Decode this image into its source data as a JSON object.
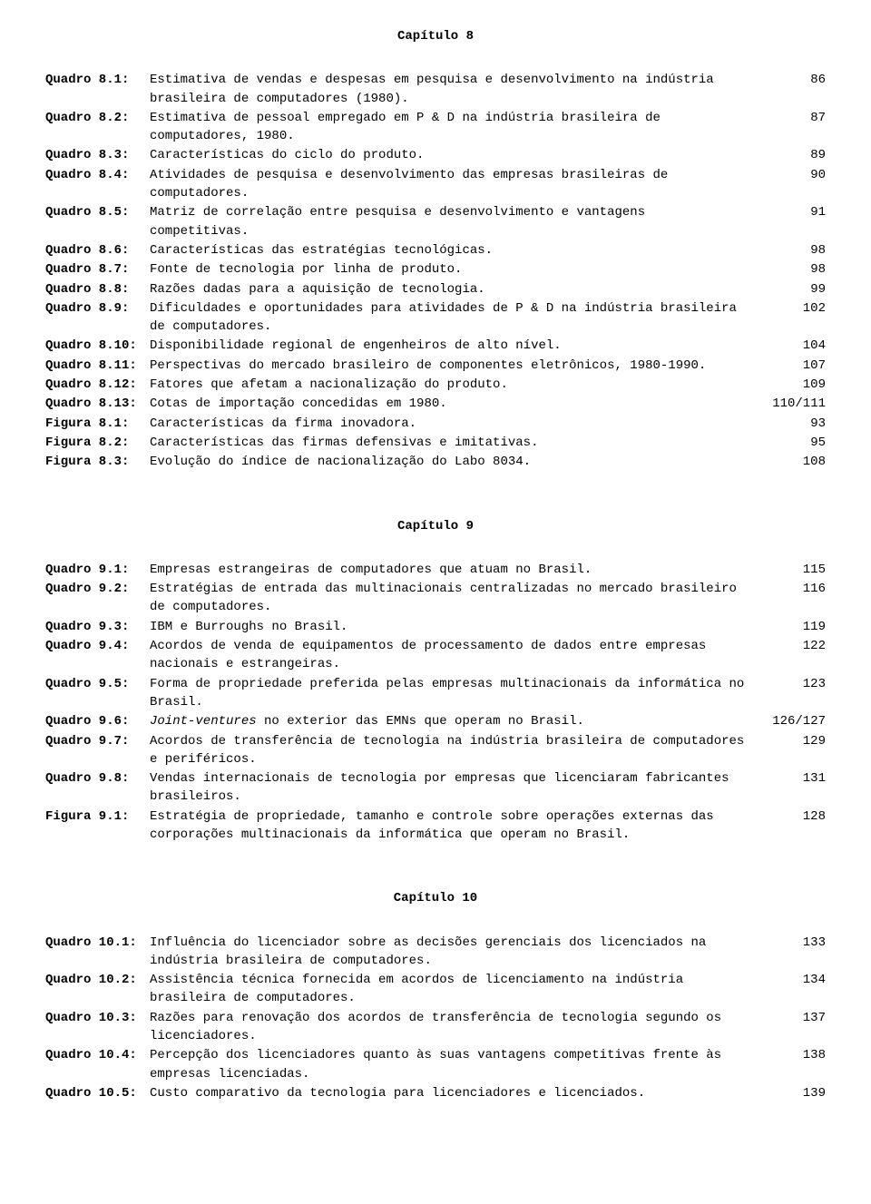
{
  "chapters": [
    {
      "heading": "Capítulo 8",
      "first": true,
      "entries": [
        {
          "label": "Quadro 8.1:",
          "desc": "Estimativa de vendas e despesas em pesquisa e desenvolvimento na indústria brasileira de computadores (1980).",
          "page": "86"
        },
        {
          "label": "Quadro 8.2:",
          "desc": "Estimativa de pessoal empregado em P & D na indústria brasileira de computadores, 1980.",
          "page": "87"
        },
        {
          "label": "Quadro 8.3:",
          "desc": "Características do ciclo do produto.",
          "page": "89"
        },
        {
          "label": "Quadro 8.4:",
          "desc": "Atividades de pesquisa e desenvolvimento das empresas brasileiras de computadores.",
          "page": "90"
        },
        {
          "label": "Quadro 8.5:",
          "desc": "Matriz de correlação entre pesquisa e desenvolvimento e vantagens competitivas.",
          "page": "91"
        },
        {
          "label": "Quadro 8.6:",
          "desc": "Características das estratégias tecnológicas.",
          "page": "98"
        },
        {
          "label": "Quadro 8.7:",
          "desc": "Fonte de tecnologia por linha de produto.",
          "page": "98"
        },
        {
          "label": "Quadro 8.8:",
          "desc": "Razões dadas para a aquisição de tecnologia.",
          "page": "99"
        },
        {
          "label": "Quadro 8.9:",
          "desc": "Dificuldades e oportunidades para atividades de P & D na indústria brasileira de computadores.",
          "page": "102"
        },
        {
          "label": "Quadro 8.10:",
          "desc": "Disponibilidade regional de engenheiros de alto nível.",
          "page": "104"
        },
        {
          "label": "Quadro 8.11:",
          "desc": "Perspectivas do mercado brasileiro de componentes eletrônicos, 1980-1990.",
          "page": "107"
        },
        {
          "label": "Quadro 8.12:",
          "desc": "Fatores que afetam a nacionalização do produto.",
          "page": "109"
        },
        {
          "label": "Quadro 8.13:",
          "desc": "Cotas de importação concedidas em 1980.",
          "page": "110/111"
        },
        {
          "label": "Figura 8.1:",
          "desc": "Características da firma inovadora.",
          "page": "93"
        },
        {
          "label": "Figura 8.2:",
          "desc": "Características das firmas defensivas e imitativas.",
          "page": "95"
        },
        {
          "label": "Figura 8.3:",
          "desc": "Evolução do índice de nacionalização do Labo 8034.",
          "page": "108"
        }
      ]
    },
    {
      "heading": "Capítulo 9",
      "entries": [
        {
          "label": "Quadro 9.1:",
          "desc": "Empresas estrangeiras de computadores que atuam no Brasil.",
          "page": "115"
        },
        {
          "label": "Quadro 9.2:",
          "desc": "Estratégias de entrada das multinacionais centralizadas no mercado brasileiro de computadores.",
          "page": "116"
        },
        {
          "label": "Quadro 9.3:",
          "desc": "IBM e Burroughs no Brasil.",
          "page": "119"
        },
        {
          "label": "Quadro 9.4:",
          "desc": "Acordos de venda de equipamentos de processamento de dados entre empresas nacionais e estrangeiras.",
          "page": "122"
        },
        {
          "label": "Quadro 9.5:",
          "desc": "Forma de propriedade preferida pelas empresas multinacionais da informática no Brasil.",
          "page": "123"
        },
        {
          "label": "Quadro 9.6:",
          "desc_html": "<span class=\"italic\">Joint-ventures</span> no exterior das EMNs que operam no Brasil.",
          "page": "126/127"
        },
        {
          "label": "Quadro 9.7:",
          "desc": "Acordos de transferência de tecnologia na indústria brasileira de computadores e periféricos.",
          "page": "129"
        },
        {
          "label": "Quadro 9.8:",
          "desc": "Vendas internacionais de tecnologia por empresas que licenciaram fabricantes brasileiros.",
          "page": "131"
        },
        {
          "label": "Figura 9.1:",
          "desc": "Estratégia de propriedade, tamanho e controle sobre operações externas das corporações multinacionais da informática que operam no Brasil.",
          "page": "128"
        }
      ]
    },
    {
      "heading": "Capítulo 10",
      "entries": [
        {
          "label": "Quadro 10.1:",
          "desc": "Influência do licenciador sobre as decisões gerenciais dos licenciados na indústria brasileira de computadores.",
          "page": "133"
        },
        {
          "label": "Quadro 10.2:",
          "desc": "Assistência técnica fornecida em acordos de licenciamento na indústria brasileira de computadores.",
          "page": "134"
        },
        {
          "label": "Quadro 10.3:",
          "desc": "Razões para renovação dos acordos de transferência de tecnologia segundo os licenciadores.",
          "page": "137"
        },
        {
          "label": "Quadro 10.4:",
          "desc": "Percepção dos licenciadores quanto às suas vantagens competitivas frente às empresas licenciadas.",
          "page": "138"
        },
        {
          "label": "Quadro 10.5:",
          "desc": "Custo comparativo da tecnologia para licenciadores e licenciados.",
          "page": "139"
        }
      ]
    }
  ]
}
